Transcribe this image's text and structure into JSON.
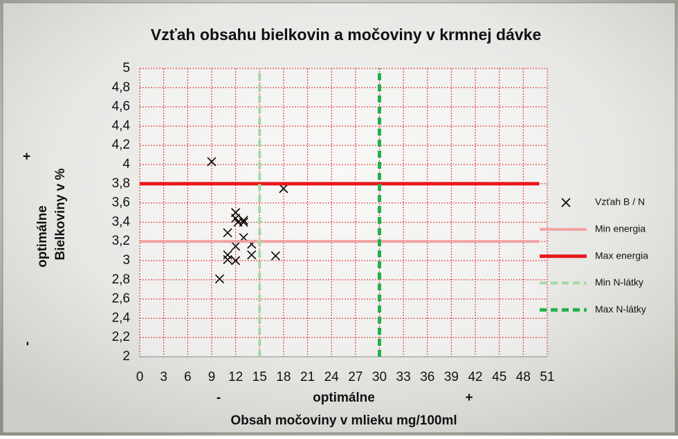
{
  "chart_data": {
    "type": "scatter",
    "title": "Vzťah obsahu bielkovin a močoviny v krmnej dávke",
    "x_label": "Obsah močoviny v mlieku mg/100ml",
    "y_label": "Bielkoviny v %",
    "x_annotations": [
      "-",
      "optimálne",
      "+"
    ],
    "y_annotations": [
      "-",
      "optimálne",
      "+"
    ],
    "xlim": [
      0,
      51
    ],
    "ylim": [
      2,
      5
    ],
    "xticks": [
      0,
      3,
      6,
      9,
      12,
      15,
      18,
      21,
      24,
      27,
      30,
      33,
      36,
      39,
      42,
      45,
      48,
      51
    ],
    "yticks": [
      2,
      {
        "value": 2.2,
        "label": "2,2"
      },
      {
        "value": 2.4,
        "label": "2,4"
      },
      {
        "value": 2.6,
        "label": "2,6"
      },
      {
        "value": 2.8,
        "label": "2,8"
      },
      3,
      {
        "value": 3.2,
        "label": "3,2"
      },
      {
        "value": 3.4,
        "label": "3,4"
      },
      {
        "value": 3.6,
        "label": "3,6"
      },
      {
        "value": 3.8,
        "label": "3,8"
      },
      4,
      {
        "value": 4.2,
        "label": "4,2"
      },
      {
        "value": 4.4,
        "label": "4,4"
      },
      {
        "value": 4.6,
        "label": "4,6"
      },
      {
        "value": 4.8,
        "label": "4,8"
      },
      5
    ],
    "grid": true,
    "grid_color": "#e02020",
    "legend": "right",
    "series": [
      {
        "name": "Vzťah B / N",
        "style": "marker",
        "color": "#000000",
        "x": [
          9,
          18,
          12,
          12,
          12.3,
          13,
          13,
          11,
          13,
          12,
          14,
          11,
          11,
          12,
          14,
          17,
          10
        ],
        "values": [
          4.03,
          3.75,
          3.5,
          3.44,
          3.4,
          3.42,
          3.4,
          3.29,
          3.24,
          3.15,
          3.17,
          3.06,
          3.01,
          3.0,
          3.06,
          3.05,
          2.81
        ]
      },
      {
        "name": "Min energia",
        "style": "line",
        "color": "#f2a2a2",
        "width": 4,
        "dash": false,
        "x": [
          0,
          50
        ],
        "values": [
          3.2,
          3.2
        ]
      },
      {
        "name": "Max energia",
        "style": "line",
        "color": "#e8191c",
        "width": 5,
        "dash": false,
        "x": [
          0,
          50
        ],
        "values": [
          3.8,
          3.8
        ]
      },
      {
        "name": "Min N-látky",
        "style": "line",
        "color": "#a3d9a5",
        "width": 4,
        "dash": true,
        "x": [
          15,
          15
        ],
        "values": [
          2,
          5
        ]
      },
      {
        "name": "Max N-látky",
        "style": "line",
        "color": "#22b04b",
        "width": 5,
        "dash": true,
        "x": [
          30,
          30
        ],
        "values": [
          2,
          5
        ]
      }
    ]
  }
}
